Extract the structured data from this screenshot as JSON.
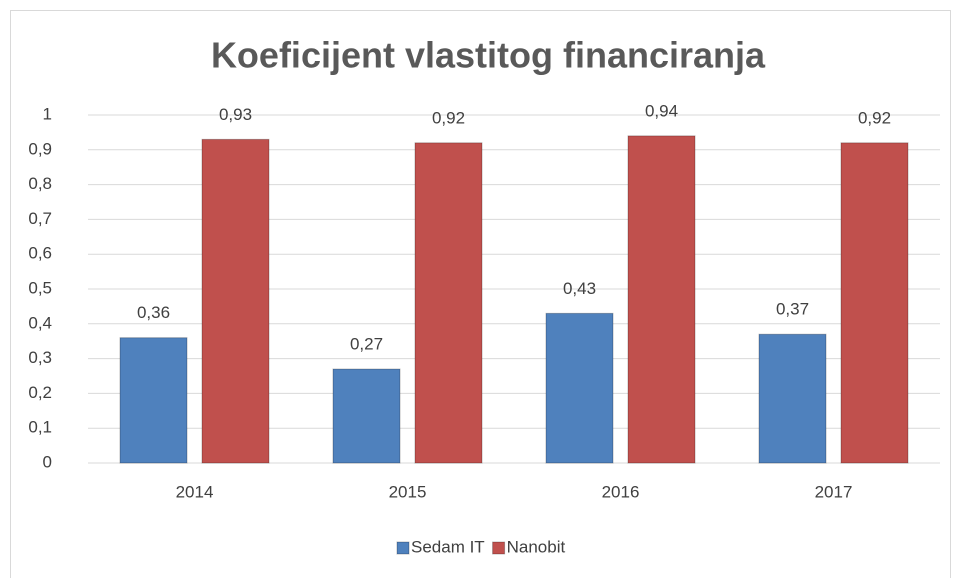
{
  "chart_data": {
    "type": "bar",
    "title": "Koeficijent vlastitog financiranja",
    "categories": [
      "2014",
      "2015",
      "2016",
      "2017"
    ],
    "series": [
      {
        "name": "Sedam IT",
        "color": "#4f81bd",
        "values": [
          0.36,
          0.27,
          0.43,
          0.37
        ],
        "value_labels": [
          "0,36",
          "0,27",
          "0,43",
          "0,37"
        ]
      },
      {
        "name": "Nanobit",
        "color": "#c0504d",
        "values": [
          0.93,
          0.92,
          0.94,
          0.92
        ],
        "value_labels": [
          "0,93",
          "0,92",
          "0,94",
          "0,92"
        ]
      }
    ],
    "ylim": [
      0,
      1
    ],
    "yticks": [
      0,
      {
        "value": 0.1,
        "label": "0,1"
      },
      {
        "value": 0.2,
        "label": "0,2"
      },
      {
        "value": 0.3,
        "label": "0,3"
      },
      {
        "value": 0.4,
        "label": "0,4"
      },
      {
        "value": 0.5,
        "label": "0,5"
      },
      {
        "value": 0.6,
        "label": "0,6"
      },
      {
        "value": 0.7,
        "label": "0,7"
      },
      {
        "value": 0.8,
        "label": "0,8"
      },
      {
        "value": 0.9,
        "label": "0,9"
      },
      1
    ],
    "grid": true,
    "legend": "bottom"
  }
}
